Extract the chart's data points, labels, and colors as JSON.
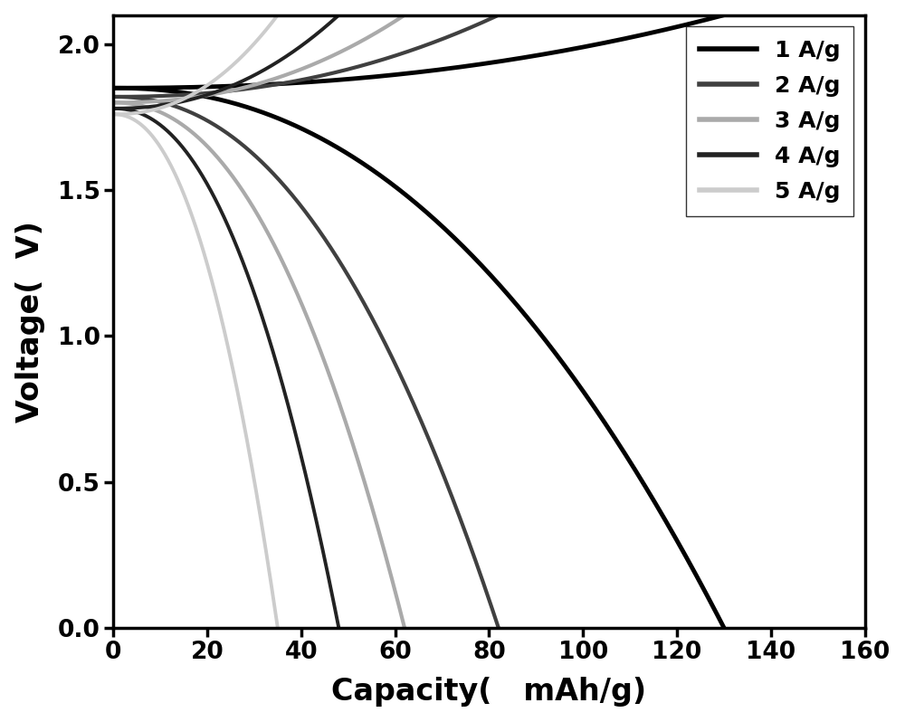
{
  "xlim": [
    0,
    160
  ],
  "ylim": [
    0,
    2.1
  ],
  "xticks": [
    0,
    20,
    40,
    60,
    80,
    100,
    120,
    140,
    160
  ],
  "yticks": [
    0.0,
    0.5,
    1.0,
    1.5,
    2.0
  ],
  "curves": [
    {
      "label": "1 A/g",
      "color": "#000000",
      "linewidth": 3.5,
      "max_capacity": 130,
      "v_start": 1.85
    },
    {
      "label": "2 A/g",
      "color": "#404040",
      "linewidth": 3.0,
      "max_capacity": 82,
      "v_start": 1.82
    },
    {
      "label": "3 A/g",
      "color": "#aaaaaa",
      "linewidth": 3.0,
      "max_capacity": 62,
      "v_start": 1.8
    },
    {
      "label": "4 A/g",
      "color": "#222222",
      "linewidth": 2.8,
      "max_capacity": 48,
      "v_start": 1.78
    },
    {
      "label": "5 A/g",
      "color": "#cccccc",
      "linewidth": 2.8,
      "max_capacity": 35,
      "v_start": 1.76
    }
  ],
  "legend_fontsize": 18,
  "axis_label_fontsize": 24,
  "tick_fontsize": 19,
  "background_color": "#ffffff"
}
